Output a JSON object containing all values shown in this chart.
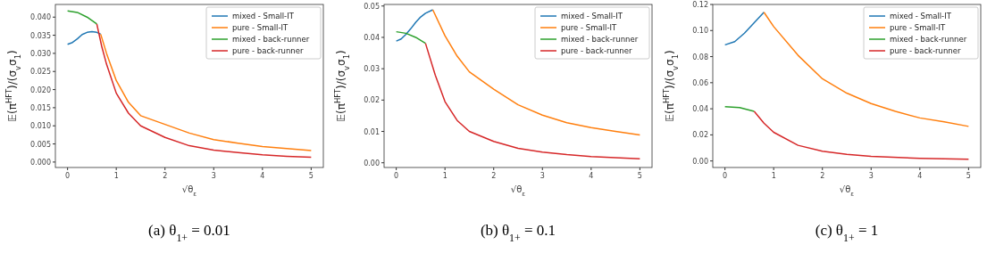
{
  "chart_data": [
    {
      "type": "line",
      "xlabel": "√θ$_{ε}$",
      "ylabel": "𝔼(π$^{HFT}$)/(σ$_{v}$σ$_{1}$)",
      "annotations": [
        "(a) θ$_{1+}$ = 0.01"
      ],
      "xlim": [
        -0.25,
        5.25
      ],
      "xticks": [
        0,
        1,
        2,
        3,
        4,
        5
      ],
      "ylim": [
        -0.0015,
        0.0435
      ],
      "yticks": [
        {
          "value": 0,
          "label": "0.000"
        },
        {
          "value": 0.005,
          "label": "0.005"
        },
        {
          "value": 0.01,
          "label": "0.010"
        },
        {
          "value": 0.015,
          "label": "0.015"
        },
        {
          "value": 0.02,
          "label": "0.020"
        },
        {
          "value": 0.025,
          "label": "0.025"
        },
        {
          "value": 0.03,
          "label": "0.030"
        },
        {
          "value": 0.035,
          "label": "0.035"
        },
        {
          "value": 0.04,
          "label": "0.040"
        }
      ],
      "legend": "top right",
      "grid": false,
      "series": [
        {
          "name": "mixed - Small-IT",
          "color": "#1f77b4",
          "x": [
            0,
            0.1,
            0.2,
            0.3,
            0.4,
            0.5,
            0.6,
            0.68
          ],
          "values": [
            0.0325,
            0.033,
            0.034,
            0.0352,
            0.0358,
            0.036,
            0.0358,
            0.0353
          ]
        },
        {
          "name": "pure - Small-IT",
          "color": "#ff7f0e",
          "x": [
            0.68,
            0.8,
            1,
            1.25,
            1.5,
            2,
            2.5,
            3,
            3.5,
            4,
            4.5,
            5
          ],
          "values": [
            0.0353,
            0.03,
            0.0225,
            0.0165,
            0.0128,
            0.0104,
            0.008,
            0.0062,
            0.0052,
            0.0043,
            0.0037,
            0.0032
          ]
        },
        {
          "name": "mixed - back-runner",
          "color": "#2ca02c",
          "x": [
            0,
            0.2,
            0.4,
            0.6
          ],
          "values": [
            0.0417,
            0.0413,
            0.04,
            0.0381
          ]
        },
        {
          "name": "pure - back-runner",
          "color": "#d62728",
          "x": [
            0.6,
            0.7,
            0.8,
            1,
            1.25,
            1.5,
            2,
            2.5,
            3,
            3.5,
            4,
            4.5,
            5
          ],
          "values": [
            0.0381,
            0.032,
            0.027,
            0.019,
            0.0135,
            0.01,
            0.0068,
            0.0045,
            0.0033,
            0.0026,
            0.002,
            0.0016,
            0.0013
          ]
        }
      ]
    },
    {
      "type": "line",
      "xlabel": "√θ$_{ε}$",
      "ylabel": "𝔼(π$^{HFT}$)/(σ$_{v}$σ$_{1}$)",
      "annotations": [
        "(b) θ$_{1+}$ = 0.1"
      ],
      "xlim": [
        -0.25,
        5.25
      ],
      "xticks": [
        0,
        1,
        2,
        3,
        4,
        5
      ],
      "ylim": [
        -0.0015,
        0.0505
      ],
      "yticks": [
        {
          "value": 0,
          "label": "0.00"
        },
        {
          "value": 0.01,
          "label": "0.01"
        },
        {
          "value": 0.02,
          "label": "0.02"
        },
        {
          "value": 0.03,
          "label": "0.03"
        },
        {
          "value": 0.04,
          "label": "0.04"
        },
        {
          "value": 0.05,
          "label": "0.05"
        }
      ],
      "legend": "top right",
      "grid": false,
      "series": [
        {
          "name": "mixed - Small-IT",
          "color": "#1f77b4",
          "x": [
            0,
            0.1,
            0.2,
            0.3,
            0.4,
            0.5,
            0.6,
            0.75
          ],
          "values": [
            0.0388,
            0.0395,
            0.041,
            0.0428,
            0.0448,
            0.0465,
            0.0477,
            0.0488
          ]
        },
        {
          "name": "pure - Small-IT",
          "color": "#ff7f0e",
          "x": [
            0.75,
            1,
            1.25,
            1.5,
            2,
            2.5,
            3,
            3.5,
            4,
            4.5,
            5
          ],
          "values": [
            0.0488,
            0.0405,
            0.034,
            0.029,
            0.0235,
            0.0185,
            0.0152,
            0.0128,
            0.0112,
            0.01,
            0.0089
          ]
        },
        {
          "name": "mixed - back-runner",
          "color": "#2ca02c",
          "x": [
            0,
            0.2,
            0.4,
            0.6
          ],
          "values": [
            0.0418,
            0.0413,
            0.04,
            0.0381
          ]
        },
        {
          "name": "pure - back-runner",
          "color": "#d62728",
          "x": [
            0.6,
            0.8,
            1,
            1.25,
            1.5,
            2,
            2.5,
            3,
            3.5,
            4,
            4.5,
            5
          ],
          "values": [
            0.0381,
            0.028,
            0.0195,
            0.0135,
            0.01,
            0.0068,
            0.0046,
            0.0034,
            0.0026,
            0.002,
            0.0016,
            0.0013
          ]
        }
      ]
    },
    {
      "type": "line",
      "xlabel": "√θ$_{ε}$",
      "ylabel": "𝔼(π$^{HFT}$)/(σ$_{v}$σ$_{1}$)",
      "annotations": [
        "(c) θ$_{1+}$ = 1"
      ],
      "xlim": [
        -0.25,
        5.25
      ],
      "xticks": [
        0,
        1,
        2,
        3,
        4,
        5
      ],
      "ylim": [
        -0.005,
        0.12
      ],
      "yticks": [
        {
          "value": 0,
          "label": "0.00"
        },
        {
          "value": 0.02,
          "label": "0.02"
        },
        {
          "value": 0.04,
          "label": "0.04"
        },
        {
          "value": 0.06,
          "label": "0.06"
        },
        {
          "value": 0.08,
          "label": "0.08"
        },
        {
          "value": 0.1,
          "label": "0.10"
        },
        {
          "value": 0.12,
          "label": "0.12"
        }
      ],
      "legend": "top right",
      "grid": false,
      "series": [
        {
          "name": "mixed - Small-IT",
          "color": "#1f77b4",
          "x": [
            0,
            0.2,
            0.4,
            0.6,
            0.8
          ],
          "values": [
            0.089,
            0.0915,
            0.098,
            0.106,
            0.114
          ]
        },
        {
          "name": "pure - Small-IT",
          "color": "#ff7f0e",
          "x": [
            0.8,
            1,
            1.5,
            2,
            2.5,
            3,
            3.5,
            4,
            4.5,
            5
          ],
          "values": [
            0.114,
            0.103,
            0.081,
            0.063,
            0.052,
            0.044,
            0.038,
            0.033,
            0.03,
            0.0265
          ]
        },
        {
          "name": "mixed - back-runner",
          "color": "#2ca02c",
          "x": [
            0,
            0.3,
            0.6
          ],
          "values": [
            0.0417,
            0.041,
            0.038
          ]
        },
        {
          "name": "pure - back-runner",
          "color": "#d62728",
          "x": [
            0.6,
            0.8,
            1,
            1.5,
            2,
            2.5,
            3,
            4,
            5
          ],
          "values": [
            0.038,
            0.029,
            0.022,
            0.012,
            0.0075,
            0.005,
            0.0035,
            0.002,
            0.0013
          ]
        }
      ]
    }
  ]
}
